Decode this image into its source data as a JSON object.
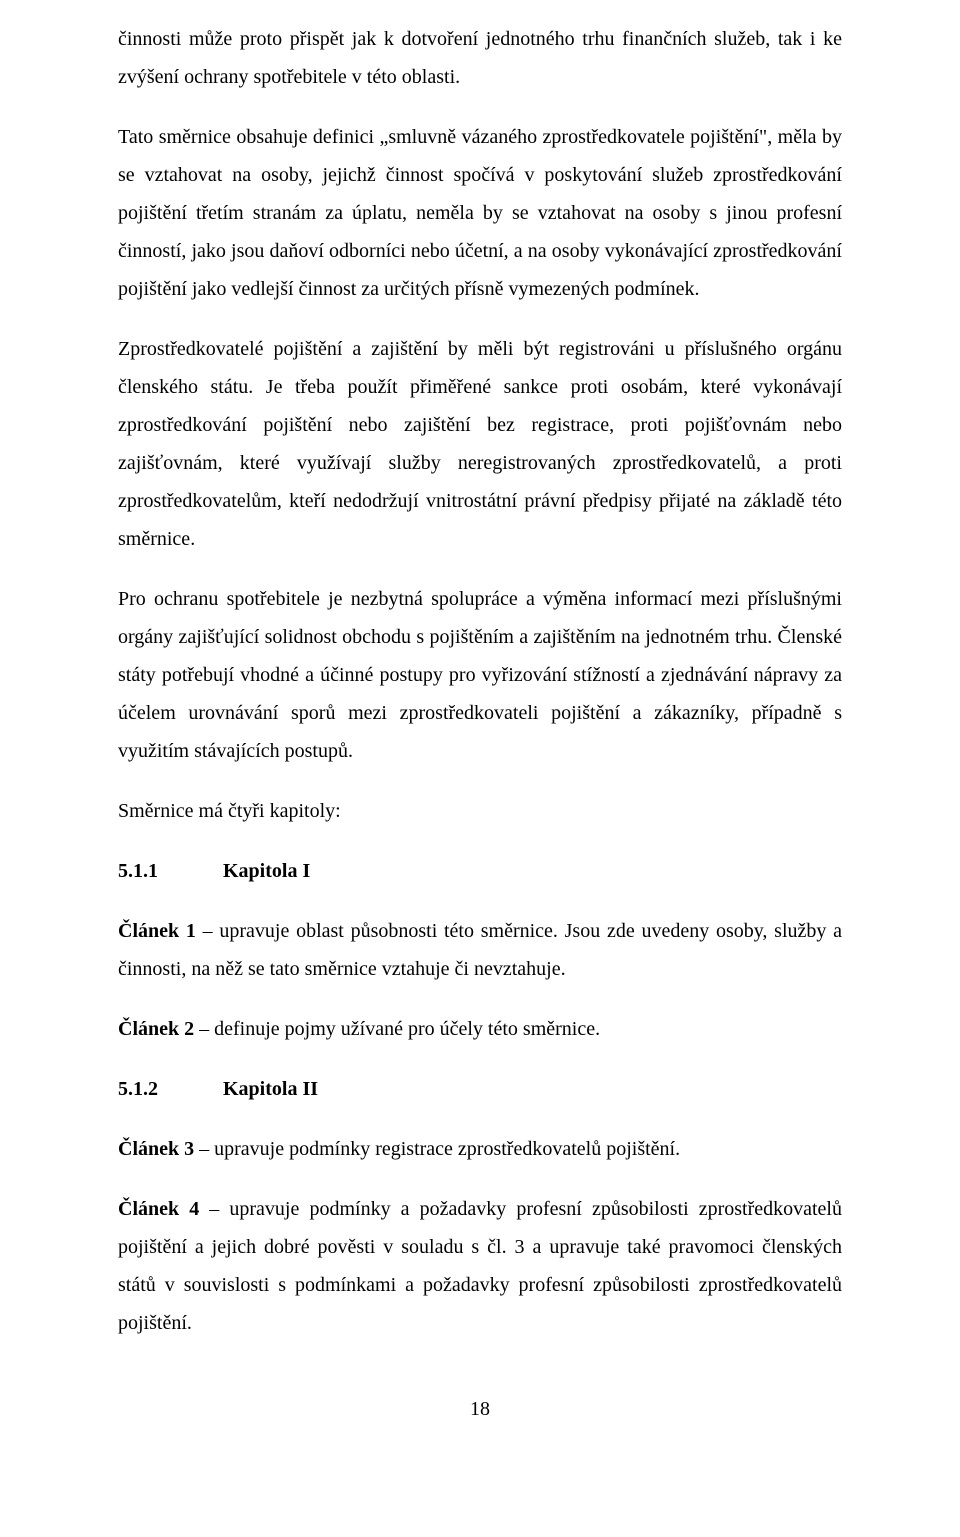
{
  "paragraphs": {
    "p1": "činnosti může proto přispět jak k dotvoření jednotného trhu finančních služeb, tak i ke zvýšení ochrany spotřebitele v této oblasti.",
    "p2": "Tato směrnice obsahuje definici „smluvně vázaného zprostředkovatele pojištění\", měla by se vztahovat na osoby, jejichž činnost spočívá v poskytování služeb zprostředkování pojištění třetím stranám za úplatu, neměla by se vztahovat na osoby s jinou profesní činností, jako jsou daňoví odborníci nebo účetní, a na osoby vykonávající zprostředkování pojištění jako vedlejší činnost za určitých přísně vymezených podmínek.",
    "p3": "Zprostředkovatelé pojištění a zajištění by měli být registrováni u příslušného orgánu členského státu. Je třeba použít přiměřené sankce proti osobám, které vykonávají zprostředkování pojištění nebo zajištění bez registrace, proti pojišťovnám nebo zajišťovnám, které využívají služby neregistrovaných zprostředkovatelů, a proti zprostředkovatelům, kteří nedodržují vnitrostátní právní předpisy přijaté na základě této směrnice.",
    "p4": "Pro ochranu spotřebitele je nezbytná spolupráce a výměna informací mezi příslušnými orgány zajišťující solidnost obchodu s pojištěním a zajištěním na jednotném trhu. Členské státy potřebují vhodné a účinné postupy pro vyřizování stížností a zjednávání nápravy za účelem urovnávání sporů mezi zprostředkovateli pojištění a zákazníky, případně s využitím stávajících postupů.",
    "p5": "Směrnice má čtyři kapitoly:"
  },
  "headings": {
    "h1_num": "5.1.1",
    "h1_title": "Kapitola I",
    "h2_num": "5.1.2",
    "h2_title": "Kapitola II"
  },
  "articles": {
    "a1_label": "Článek 1",
    "a1_text": " – upravuje oblast působnosti této směrnice. Jsou zde uvedeny osoby, služby a činnosti, na něž se tato směrnice vztahuje či nevztahuje.",
    "a2_label": "Článek 2",
    "a2_text": " – definuje pojmy užívané pro účely této směrnice.",
    "a3_label": "Článek 3",
    "a3_text": " – upravuje podmínky registrace zprostředkovatelů pojištění.",
    "a4_label": "Článek 4",
    "a4_text": " – upravuje podmínky a požadavky profesní způsobilosti zprostředkovatelů pojištění a jejich dobré pověsti v souladu s čl. 3 a upravuje také pravomoci členských států v souvislosti s podmínkami a požadavky profesní způsobilosti zprostředkovatelů pojištění."
  },
  "pageNumber": "18"
}
